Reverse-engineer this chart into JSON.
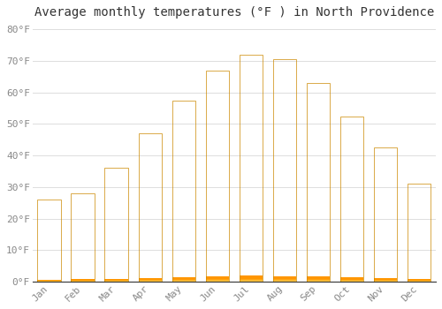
{
  "title": "Average monthly temperatures (°F ) in North Providence",
  "months": [
    "Jan",
    "Feb",
    "Mar",
    "Apr",
    "May",
    "Jun",
    "Jul",
    "Aug",
    "Sep",
    "Oct",
    "Nov",
    "Dec"
  ],
  "values": [
    26,
    28,
    36,
    47,
    57.5,
    67,
    72,
    70.5,
    63,
    52.5,
    42.5,
    31
  ],
  "bar_color": "#FFA500",
  "bar_edge_color": "#CC8000",
  "background_color": "#FFFFFF",
  "grid_color": "#DDDDDD",
  "tick_label_color": "#888888",
  "title_color": "#333333",
  "ylim": [
    0,
    82
  ],
  "yticks": [
    0,
    10,
    20,
    30,
    40,
    50,
    60,
    70,
    80
  ],
  "ytick_labels": [
    "0°F",
    "10°F",
    "20°F",
    "30°F",
    "40°F",
    "50°F",
    "60°F",
    "70°F",
    "80°F"
  ],
  "title_fontsize": 10,
  "tick_fontsize": 8,
  "bar_width": 0.7,
  "gradient_colors": [
    "#FFB300",
    "#FFC830",
    "#FFD060",
    "#FFB300"
  ]
}
